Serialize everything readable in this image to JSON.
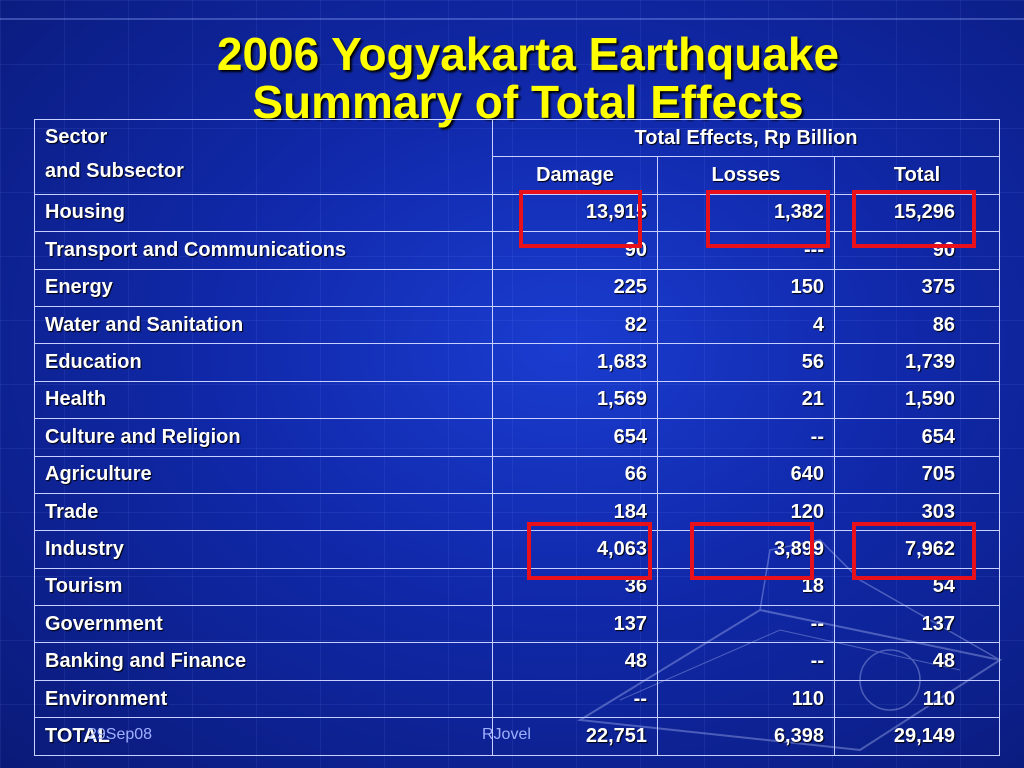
{
  "slide": {
    "title_line1": "2006 Yogyakarta Earthquake",
    "title_line2": "Summary of Total Effects"
  },
  "table": {
    "sector_header_line1": "Sector",
    "sector_header_line2": "and Subsector",
    "group_header": "Total Effects, Rp Billion",
    "columns": [
      "Damage",
      "Losses",
      "Total"
    ],
    "rows": [
      {
        "sector": "Housing",
        "damage": "13,915",
        "losses": "1,382",
        "total": "15,296"
      },
      {
        "sector": "Transport and Communications",
        "damage": "90",
        "losses": "---",
        "total": "90"
      },
      {
        "sector": "Energy",
        "damage": "225",
        "losses": "150",
        "total": "375"
      },
      {
        "sector": "Water and Sanitation",
        "damage": "82",
        "losses": "4",
        "total": "86"
      },
      {
        "sector": "Education",
        "damage": "1,683",
        "losses": "56",
        "total": "1,739"
      },
      {
        "sector": "Health",
        "damage": "1,569",
        "losses": "21",
        "total": "1,590"
      },
      {
        "sector": "Culture and Religion",
        "damage": "654",
        "losses": "--",
        "total": "654"
      },
      {
        "sector": "Agriculture",
        "damage": "66",
        "losses": "640",
        "total": "705"
      },
      {
        "sector": "Trade",
        "damage": "184",
        "losses": "120",
        "total": "303"
      },
      {
        "sector": "Industry",
        "damage": "4,063",
        "losses": "3,899",
        "total": "7,962"
      },
      {
        "sector": "Tourism",
        "damage": "36",
        "losses": "18",
        "total": "54"
      },
      {
        "sector": "Government",
        "damage": "137",
        "losses": "--",
        "total": "137"
      },
      {
        "sector": "Banking and Finance",
        "damage": "48",
        "losses": "--",
        "total": "48"
      },
      {
        "sector": "Environment",
        "damage": "--",
        "losses": "110",
        "total": "110"
      },
      {
        "sector": "TOTAL",
        "damage": "22,751",
        "losses": "6,398",
        "total": "29,149"
      }
    ],
    "highlight_color": "#e8101a"
  },
  "footer": {
    "date": "29Sep08",
    "author": "RJovel"
  }
}
